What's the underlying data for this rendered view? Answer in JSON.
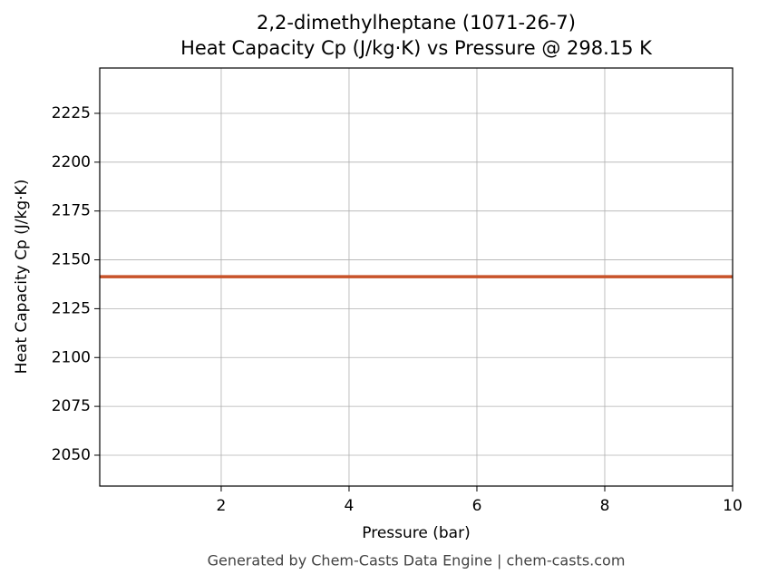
{
  "chart_data": {
    "type": "line",
    "title": "2,2-dimethylheptane (1071-26-7)",
    "subtitle": "Heat Capacity Cp (J/kg·K) vs Pressure @ 298.15 K",
    "x_label": "Pressure (bar)",
    "y_label": "Heat Capacity Cp (J/kg·K)",
    "footer": "Generated by Chem-Casts Data Engine | chem-casts.com",
    "x": [
      0.1,
      10
    ],
    "series": [
      {
        "name": "Cp",
        "color": "#c8532a",
        "values": [
          2141.4,
          2141.4
        ]
      }
    ],
    "xlim": [
      0.1,
      10
    ],
    "xticks": [
      2,
      4,
      6,
      8,
      10
    ],
    "ylim": [
      2034.2,
      2248.2
    ],
    "yticks": [
      2050,
      2075,
      2100,
      2125,
      2150,
      2175,
      2200,
      2225
    ],
    "grid": true
  }
}
